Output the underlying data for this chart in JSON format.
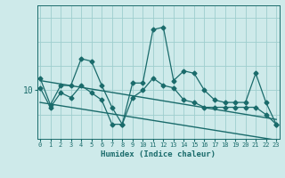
{
  "xlabel": "Humidex (Indice chaleur)",
  "background_color": "#ceeaea",
  "grid_color": "#9ecece",
  "line_color": "#1a6b6b",
  "x_min": 0,
  "x_max": 23,
  "y_min": 8.0,
  "y_max": 13.5,
  "ytick_labels": [
    "10"
  ],
  "ytick_values": [
    10
  ],
  "series": [
    {
      "x": [
        0,
        1,
        2,
        3,
        4,
        5,
        6,
        7,
        8,
        9,
        10,
        11,
        12,
        13,
        14,
        15,
        16,
        17,
        18,
        19,
        20,
        21,
        22,
        23
      ],
      "y": [
        10.5,
        9.4,
        10.2,
        10.2,
        11.3,
        11.2,
        10.2,
        9.3,
        8.6,
        10.3,
        10.3,
        12.5,
        12.6,
        10.4,
        10.8,
        10.7,
        10.0,
        9.6,
        9.5,
        9.5,
        9.5,
        10.7,
        9.5,
        8.6
      ],
      "marker": "D",
      "markersize": 2.5,
      "linewidth": 0.9
    },
    {
      "x": [
        0,
        1,
        2,
        3,
        4,
        5,
        6,
        7,
        8,
        9,
        10,
        11,
        12,
        13,
        14,
        15,
        16,
        17,
        18,
        19,
        20,
        21,
        22,
        23
      ],
      "y": [
        10.1,
        9.3,
        9.9,
        9.7,
        10.2,
        9.9,
        9.6,
        8.6,
        8.6,
        9.7,
        10.0,
        10.5,
        10.2,
        10.1,
        9.6,
        9.5,
        9.3,
        9.3,
        9.3,
        9.3,
        9.3,
        9.3,
        9.0,
        8.6
      ],
      "marker": "D",
      "markersize": 2.5,
      "linewidth": 0.9
    },
    {
      "x": [
        0,
        23
      ],
      "y": [
        10.4,
        8.8
      ],
      "marker": null,
      "markersize": 0,
      "linewidth": 1.0
    },
    {
      "x": [
        0,
        23
      ],
      "y": [
        9.5,
        7.95
      ],
      "marker": null,
      "markersize": 0,
      "linewidth": 1.0
    }
  ]
}
